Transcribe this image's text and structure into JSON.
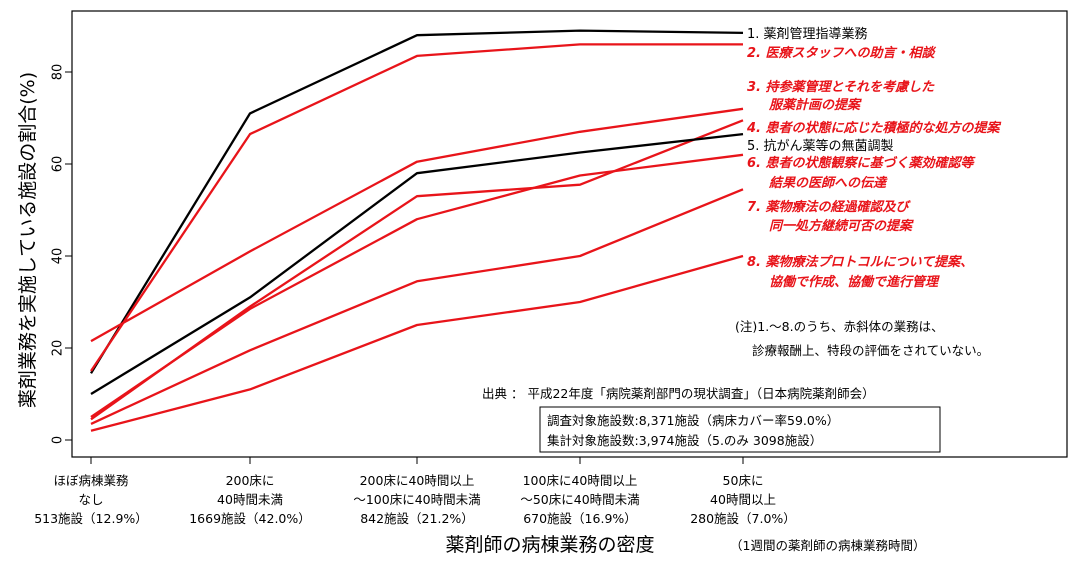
{
  "chart_data": {
    "type": "line",
    "ylabel": "薬剤業務を実施している施設の割合(%)",
    "xlabel": "薬剤師の病棟業務の密度",
    "xlabel_note": "（1週間の薬剤師の病棟業務時間）",
    "ylim": [
      0,
      92
    ],
    "yticks": [
      0,
      20,
      40,
      60,
      80
    ],
    "categories": [
      [
        "ほぼ病棟業務",
        "なし",
        "513施設（12.9%）"
      ],
      [
        "200床に",
        "40時間未満",
        "1669施設（42.0%）"
      ],
      [
        "200床に40時間以上",
        "～100床に40時間未満",
        "842施設（21.2%）"
      ],
      [
        "100床に40時間以上",
        "～50床に40時間未満",
        "670施設（16.9%）"
      ],
      [
        "50床に",
        "40時間以上",
        "280施設（7.0%）"
      ]
    ],
    "series": [
      {
        "name": "1. 薬剤管理指導業務",
        "color": "#000000",
        "values": [
          14.5,
          71,
          88,
          89,
          88.5
        ]
      },
      {
        "name": "2. 医療スタッフへの助言・相談",
        "color": "#e8141a",
        "values": [
          15,
          66.5,
          83.5,
          86,
          86
        ]
      },
      {
        "name": "3. 持参薬管理とそれを考慮した服薬計画の提案",
        "color": "#e8141a",
        "values": [
          21.5,
          41,
          60.5,
          67,
          72
        ]
      },
      {
        "name": "4. 患者の状態に応じた積極的な処方の提案",
        "color": "#e8141a",
        "values": [
          4.5,
          29,
          53,
          55.5,
          69.5
        ]
      },
      {
        "name": "5. 抗がん薬等の無菌調製",
        "color": "#000000",
        "values": [
          10,
          31,
          58,
          62.5,
          66.5
        ]
      },
      {
        "name": "6. 患者の状態観察に基づく薬効確認等結果の医師への伝達",
        "color": "#e8141a",
        "values": [
          5,
          28.5,
          48,
          57.5,
          62
        ]
      },
      {
        "name": "7. 薬物療法の経過確認及び同一処方継続可否の提案",
        "color": "#e8141a",
        "values": [
          3.5,
          19.5,
          34.5,
          40,
          54.5
        ]
      },
      {
        "name": "8. 薬物療法プロトコルについて提案、協働で作成、協働で進行管理",
        "color": "#e8141a",
        "values": [
          2,
          11,
          25,
          30,
          40
        ]
      }
    ],
    "legend_labels": [
      {
        "lines": [
          "1. 薬剤管理指導業務"
        ],
        "style": "black"
      },
      {
        "lines": [
          "2. 医療スタッフへの助言・相談"
        ],
        "style": "red"
      },
      {
        "lines": [
          "3. 持参薬管理とそれを考慮した",
          "服薬計画の提案"
        ],
        "style": "red"
      },
      {
        "lines": [
          "4. 患者の状態に応じた積極的な処方の提案"
        ],
        "style": "red"
      },
      {
        "lines": [
          "5. 抗がん薬等の無菌調製"
        ],
        "style": "black"
      },
      {
        "lines": [
          "6. 患者の状態観察に基づく薬効確認等",
          "結果の医師への伝達"
        ],
        "style": "red"
      },
      {
        "lines": [
          "7. 薬物療法の経過確認及び",
          "同一処方継続可否の提案"
        ],
        "style": "red"
      },
      {
        "lines": [
          "8. 薬物療法プロトコルについて提案、",
          "協働で作成、協働で進行管理"
        ],
        "style": "red"
      }
    ],
    "note": [
      "(注)1.～8.のうち、赤斜体の業務は、",
      "診療報酬上、特段の評価をされていない。"
    ],
    "source": "出典 ： 平成22年度「病院薬剤部門の現状調査」（日本病院薬剤師会）",
    "survey_box": [
      "調査対象施設数:8,371施設（病床カバー率59.0%）",
      "集計対象施設数:3,974施設（5.のみ 3098施設）"
    ]
  }
}
